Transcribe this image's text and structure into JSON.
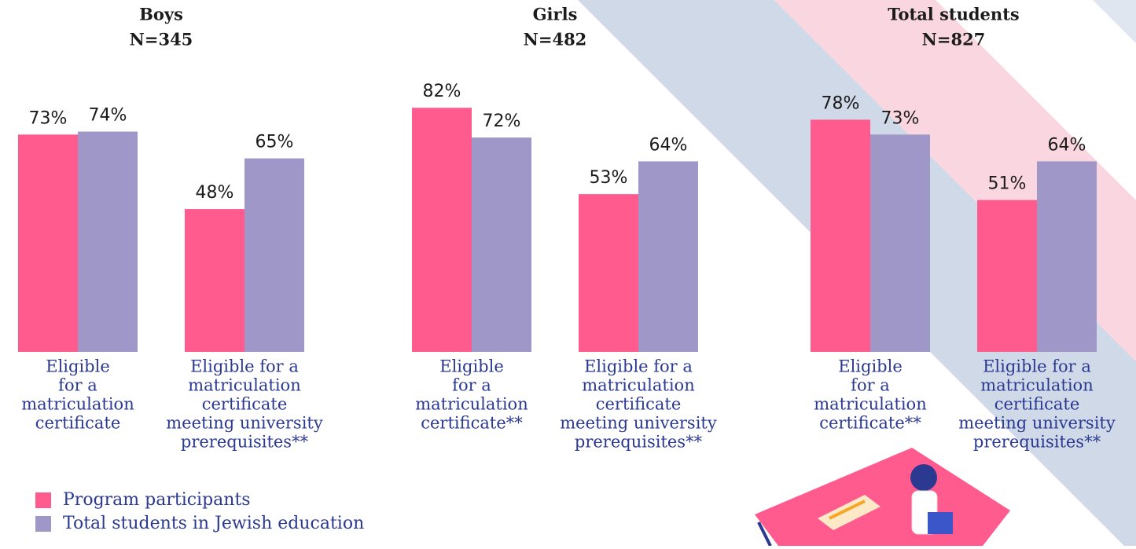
{
  "chart_data": {
    "type": "bar",
    "legend": [
      {
        "name": "Program participants",
        "color": "#ff5b8e"
      },
      {
        "name": "Total students in Jewish education",
        "color": "#9e97c7"
      }
    ],
    "panels": [
      {
        "title": "Boys",
        "subtitle": "N=345",
        "categories": [
          [
            "Eligible",
            "for a",
            "matriculation",
            "certificate"
          ],
          [
            "Eligible for a",
            "matriculation",
            "certificate",
            "meeting university",
            "prerequisites**"
          ]
        ],
        "series": [
          {
            "values": [
              73,
              48
            ],
            "value_labels": [
              "73%",
              "48%"
            ]
          },
          {
            "values": [
              74,
              65
            ],
            "value_labels": [
              "74%",
              "65%"
            ]
          }
        ]
      },
      {
        "title": "Girls",
        "subtitle": "N=482",
        "categories": [
          [
            "Eligible",
            "for a",
            "matriculation",
            "certificate**"
          ],
          [
            "Eligible for a",
            "matriculation",
            "certificate",
            "meeting university",
            "prerequisites**"
          ]
        ],
        "series": [
          {
            "values": [
              82,
              53
            ],
            "value_labels": [
              "82%",
              "53%"
            ]
          },
          {
            "values": [
              72,
              64
            ],
            "value_labels": [
              "72%",
              "64%"
            ]
          }
        ]
      },
      {
        "title": "Total students",
        "subtitle": "N=827",
        "categories": [
          [
            "Eligible",
            "for a",
            "matriculation",
            "certificate**"
          ],
          [
            "Eligible for a",
            "matriculation",
            "certificate",
            "meeting university",
            "prerequisites**"
          ]
        ],
        "series": [
          {
            "values": [
              78,
              51
            ],
            "value_labels": [
              "78%",
              "51%"
            ]
          },
          {
            "values": [
              73,
              64
            ],
            "value_labels": [
              "73%",
              "64%"
            ]
          }
        ]
      }
    ]
  }
}
